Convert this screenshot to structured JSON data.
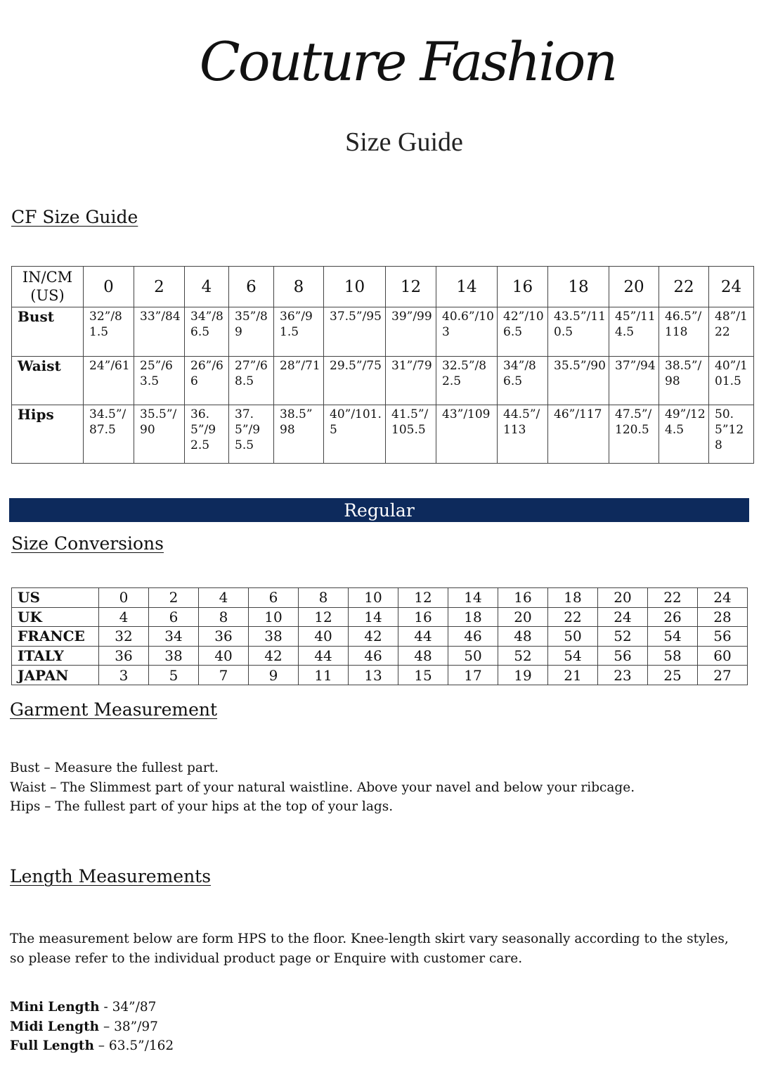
{
  "header": {
    "logo": "Couture Fashion",
    "subtitle": "Size Guide"
  },
  "cf_size_guide": {
    "title": "CF Size Guide",
    "corner": "IN/CM (US)",
    "sizes": [
      "0",
      "2",
      "4",
      "6",
      "8",
      "10",
      "12",
      "14",
      "16",
      "18",
      "20",
      "22",
      "24"
    ],
    "rows": [
      {
        "label": "Bust",
        "values": [
          "32”/81.5",
          "33”/84",
          "34”/86.5",
          "35”/89",
          "36”/91.5",
          "37.5”/95",
          "39”/99",
          "40.6”/103",
          "42”/106.5",
          "43.5”/110.5",
          "45”/114.5",
          "46.5”/118",
          "48”/122"
        ]
      },
      {
        "label": "Waist",
        "values": [
          "24”/61",
          "25”/63.5",
          "26”/66",
          "27”/68.5",
          "28”/71",
          "29.5”/75",
          "31”/79",
          "32.5”/82.5",
          "34”/86.5",
          "35.5”/90",
          "37”/94",
          "38.5”/98",
          "40”/101.5"
        ]
      },
      {
        "label": "Hips",
        "values": [
          "34.5”/87.5",
          "35.5”/90",
          "36.5”/92.5",
          "37.5”/95.5",
          "38.5” 98",
          "40”/101.5",
          "41.5”/105.5",
          "43”/109",
          "44.5”/113",
          "46”/117",
          "47.5”/120.5",
          "49”/124.5",
          "50.5”128"
        ]
      }
    ]
  },
  "banner": {
    "label": "Regular",
    "color": "#0d2a5c"
  },
  "size_conversions": {
    "title": "Size Conversions",
    "rows": [
      {
        "label": "US",
        "values": [
          "0",
          "2",
          "4",
          "6",
          "8",
          "10",
          "12",
          "14",
          "16",
          "18",
          "20",
          "22",
          "24"
        ]
      },
      {
        "label": "UK",
        "values": [
          "4",
          "6",
          "8",
          "10",
          "12",
          "14",
          "16",
          "18",
          "20",
          "22",
          "24",
          "26",
          "28"
        ]
      },
      {
        "label": "FRANCE",
        "values": [
          "32",
          "34",
          "36",
          "38",
          "40",
          "42",
          "44",
          "46",
          "48",
          "50",
          "52",
          "54",
          "56"
        ]
      },
      {
        "label": "ITALY",
        "values": [
          "36",
          "38",
          "40",
          "42",
          "44",
          "46",
          "48",
          "50",
          "52",
          "54",
          "56",
          "58",
          "60"
        ]
      },
      {
        "label": "JAPAN",
        "values": [
          "3",
          "5",
          "7",
          "9",
          "11",
          "13",
          "15",
          "17",
          "19",
          "21",
          "23",
          "25",
          "27"
        ]
      }
    ]
  },
  "garment": {
    "title": "Garment Measurement",
    "lines": [
      "Bust – Measure the fullest part.",
      "Waist – The Slimmest part of your natural waistline. Above your navel and below your ribcage.",
      "Hips – The fullest part of your hips at the top of your lags."
    ]
  },
  "length": {
    "title": "Length Measurements",
    "intro": "The measurement below are form HPS to the floor. Knee-length skirt vary seasonally according to the styles, so please refer to the individual product page or Enquire with customer care.",
    "items": [
      {
        "label": "Mini Length",
        "value": " - 34”/87"
      },
      {
        "label": "Midi Length",
        "value": " – 38”/97"
      },
      {
        "label": "Full Length",
        "value": " – 63.5”/162"
      }
    ]
  }
}
